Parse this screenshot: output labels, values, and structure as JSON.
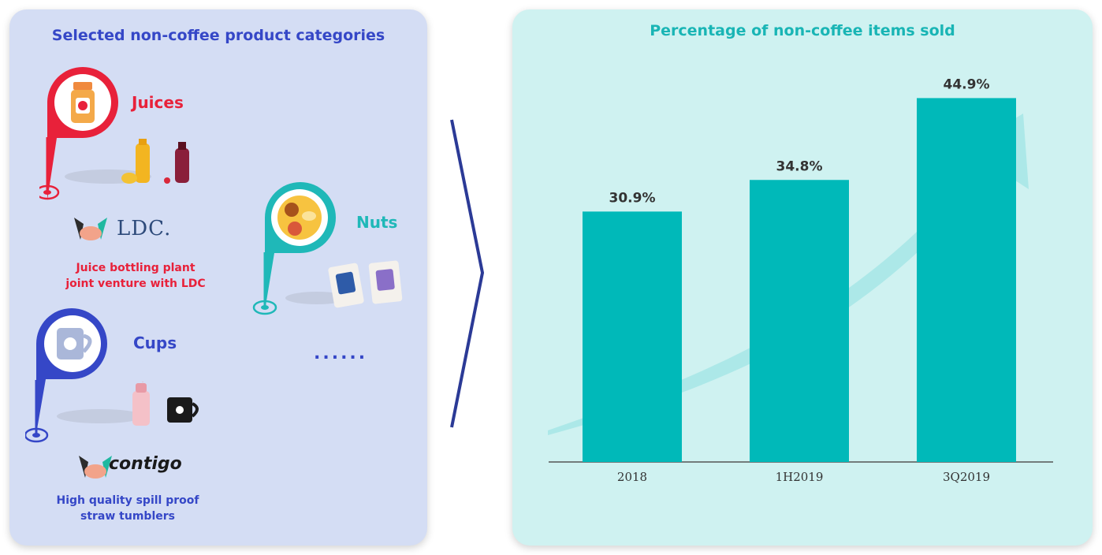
{
  "left": {
    "title": "Selected non-coffee product categories",
    "categories": [
      {
        "label": "Juices",
        "color": "#e8213a",
        "icon": "juice-bottle-icon"
      },
      {
        "label": "Nuts",
        "color": "#1fb8b8",
        "icon": "nut-mix-icon"
      },
      {
        "label": "Cups",
        "color": "#3547c7",
        "icon": "mug-icon"
      }
    ],
    "ldc": {
      "brand": "LDC.",
      "note_line1": "Juice bottling plant",
      "note_line2": "joint venture with LDC"
    },
    "contigo": {
      "brand": "contigo",
      "note_line1": "High quality spill proof",
      "note_line2": "straw tumblers"
    },
    "ellipsis": "......"
  },
  "right": {
    "title": "Percentage of non-coffee items sold"
  },
  "chart_data": {
    "type": "bar",
    "title": "Percentage of non-coffee items sold",
    "categories": [
      "2018",
      "1H2019",
      "3Q2019"
    ],
    "values": [
      30.9,
      34.8,
      44.9
    ],
    "value_labels": [
      "30.9%",
      "34.8%",
      "44.9%"
    ],
    "bar_color": "#00b9b9",
    "ylim": [
      0,
      50
    ],
    "grid": false,
    "xlabel": "",
    "ylabel": ""
  }
}
